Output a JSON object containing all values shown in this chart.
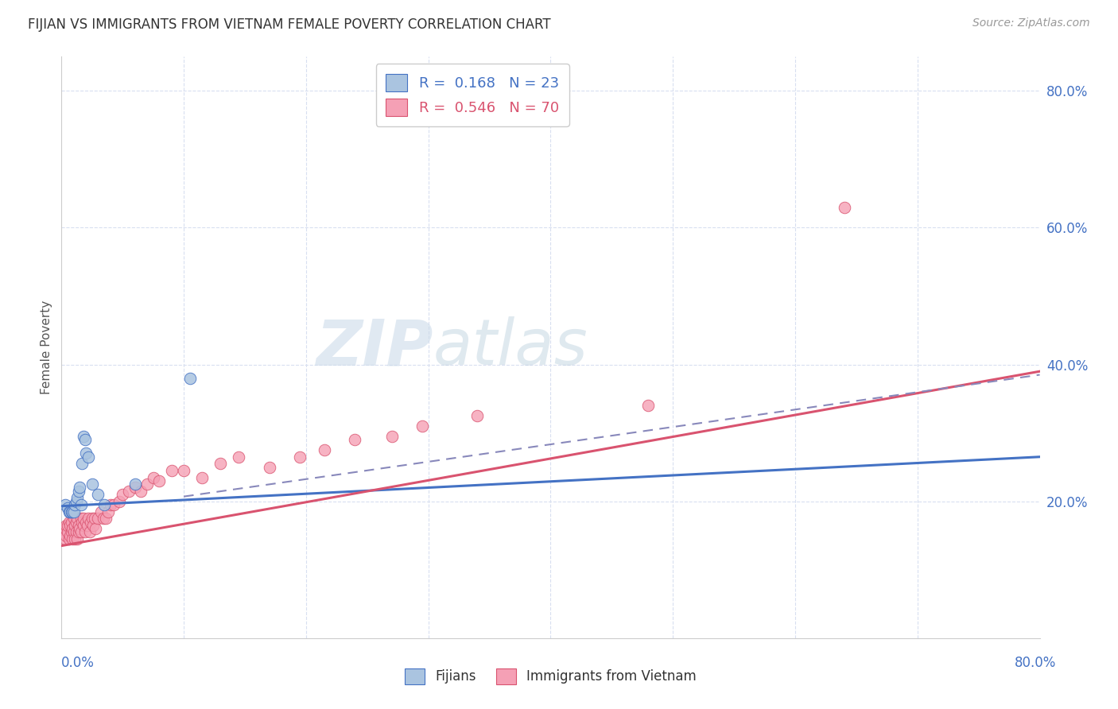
{
  "title": "FIJIAN VS IMMIGRANTS FROM VIETNAM FEMALE POVERTY CORRELATION CHART",
  "source": "Source: ZipAtlas.com",
  "ylabel": "Female Poverty",
  "fijian_color": "#aac4e0",
  "vietnam_color": "#f5a0b5",
  "fijian_line_color": "#4472c4",
  "vietnam_line_color": "#d9536f",
  "dashed_line_color": "#8888bb",
  "watermark_zip": "ZIP",
  "watermark_atlas": "atlas",
  "fijian_scatter_x": [
    0.003,
    0.005,
    0.006,
    0.007,
    0.008,
    0.009,
    0.01,
    0.011,
    0.012,
    0.013,
    0.014,
    0.015,
    0.016,
    0.017,
    0.018,
    0.019,
    0.02,
    0.022,
    0.025,
    0.03,
    0.035,
    0.06,
    0.105
  ],
  "fijian_scatter_y": [
    0.195,
    0.19,
    0.185,
    0.185,
    0.185,
    0.185,
    0.185,
    0.195,
    0.2,
    0.205,
    0.215,
    0.22,
    0.195,
    0.255,
    0.295,
    0.29,
    0.27,
    0.265,
    0.225,
    0.21,
    0.195,
    0.225,
    0.38
  ],
  "vietnam_scatter_x": [
    0.002,
    0.003,
    0.003,
    0.004,
    0.004,
    0.005,
    0.005,
    0.006,
    0.006,
    0.007,
    0.007,
    0.008,
    0.008,
    0.009,
    0.009,
    0.01,
    0.01,
    0.011,
    0.011,
    0.012,
    0.012,
    0.013,
    0.013,
    0.014,
    0.014,
    0.015,
    0.016,
    0.016,
    0.017,
    0.018,
    0.018,
    0.019,
    0.02,
    0.021,
    0.022,
    0.023,
    0.024,
    0.025,
    0.026,
    0.027,
    0.028,
    0.03,
    0.032,
    0.034,
    0.036,
    0.038,
    0.04,
    0.043,
    0.047,
    0.05,
    0.055,
    0.06,
    0.065,
    0.07,
    0.075,
    0.08,
    0.09,
    0.1,
    0.115,
    0.13,
    0.145,
    0.17,
    0.195,
    0.215,
    0.24,
    0.27,
    0.295,
    0.34,
    0.48,
    0.64
  ],
  "vietnam_scatter_y": [
    0.155,
    0.145,
    0.16,
    0.15,
    0.165,
    0.155,
    0.165,
    0.145,
    0.17,
    0.15,
    0.165,
    0.155,
    0.17,
    0.145,
    0.16,
    0.155,
    0.175,
    0.145,
    0.165,
    0.155,
    0.17,
    0.145,
    0.175,
    0.155,
    0.165,
    0.16,
    0.175,
    0.155,
    0.17,
    0.165,
    0.175,
    0.155,
    0.17,
    0.165,
    0.175,
    0.155,
    0.17,
    0.175,
    0.165,
    0.175,
    0.16,
    0.175,
    0.185,
    0.175,
    0.175,
    0.185,
    0.195,
    0.195,
    0.2,
    0.21,
    0.215,
    0.22,
    0.215,
    0.225,
    0.235,
    0.23,
    0.245,
    0.245,
    0.235,
    0.255,
    0.265,
    0.25,
    0.265,
    0.275,
    0.29,
    0.295,
    0.31,
    0.325,
    0.34,
    0.63
  ],
  "xlim": [
    0.0,
    0.8
  ],
  "ylim": [
    0.0,
    0.85
  ],
  "background_color": "#ffffff",
  "grid_color": "#d8dff0",
  "fijian_line_x0": 0.0,
  "fijian_line_y0": 0.193,
  "fijian_line_x1": 0.8,
  "fijian_line_y1": 0.265,
  "vietnam_line_x0": 0.0,
  "vietnam_line_y0": 0.135,
  "vietnam_line_x1": 0.8,
  "vietnam_line_y1": 0.39,
  "dashed_line_x0": 0.1,
  "dashed_line_y0": 0.207,
  "dashed_line_x1": 0.8,
  "dashed_line_y1": 0.385
}
